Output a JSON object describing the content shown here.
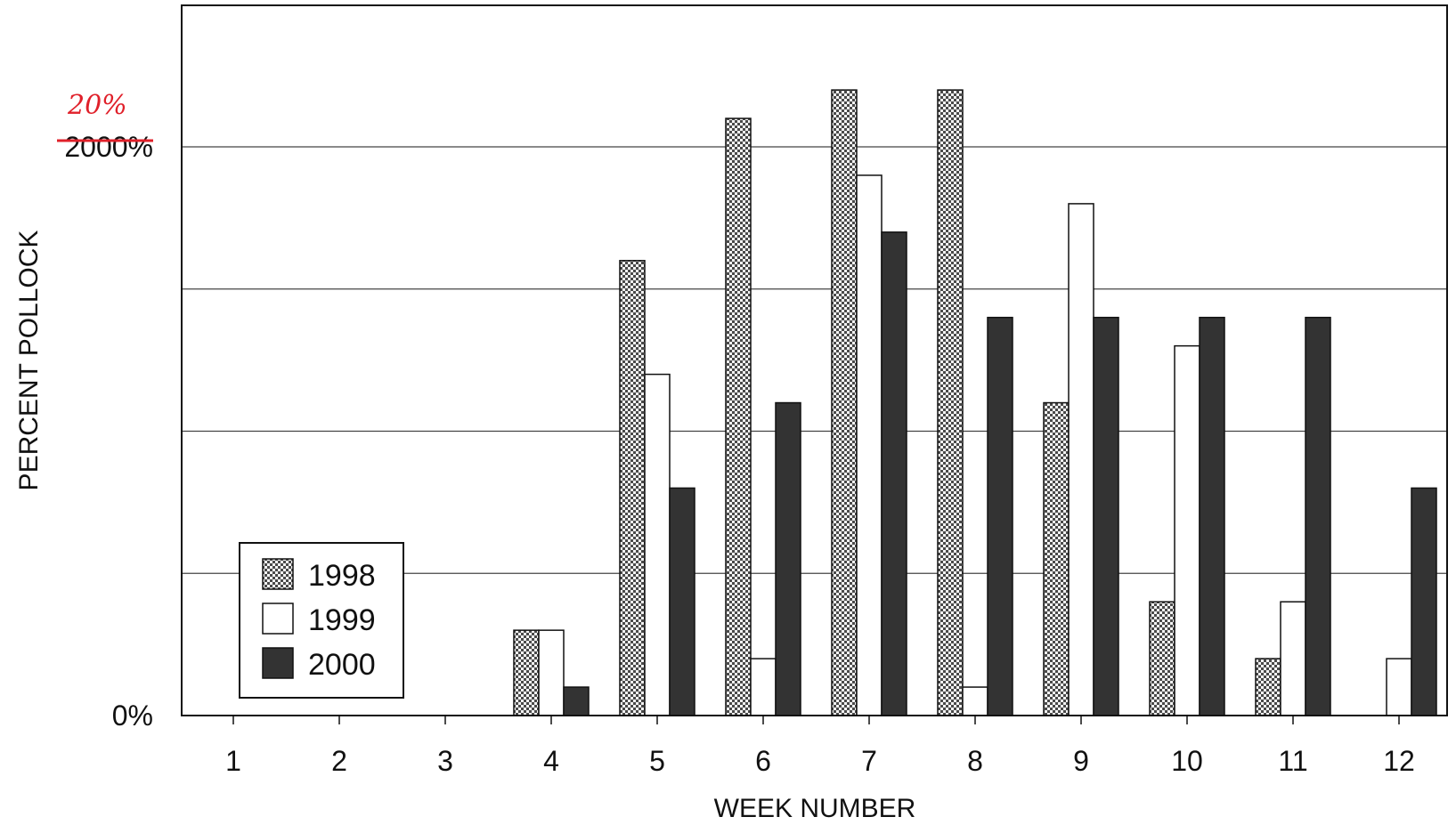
{
  "chart_data": {
    "type": "bar",
    "title": "",
    "xlabel": "WEEK NUMBER",
    "ylabel": "PERCENT POLLOCK",
    "categories": [
      "1",
      "2",
      "3",
      "4",
      "5",
      "6",
      "7",
      "8",
      "9",
      "10",
      "11",
      "12"
    ],
    "series": [
      {
        "name": "1998",
        "color": "#c8c8c8",
        "pattern": "checker",
        "values": [
          0,
          0,
          0,
          3,
          16,
          21,
          22,
          22,
          11,
          4,
          2,
          0
        ]
      },
      {
        "name": "1999",
        "color": "#ffffff",
        "pattern": "none",
        "values": [
          0,
          0,
          0,
          3,
          12,
          2,
          19,
          1,
          18,
          13,
          4,
          2
        ]
      },
      {
        "name": "2000",
        "color": "#333333",
        "pattern": "none",
        "values": [
          0,
          0,
          0,
          1,
          8,
          11,
          17,
          14,
          14,
          14,
          14,
          8
        ]
      }
    ],
    "ylim": [
      0,
      25
    ],
    "y_ticks": [
      {
        "value": 0,
        "label": "0%"
      },
      {
        "value": 20,
        "label": "2000%"
      }
    ],
    "gridlines": [
      5,
      10,
      15,
      20
    ],
    "grid": true,
    "legend": {
      "position": "bottom-left",
      "entries": [
        "1998",
        "1999",
        "2000"
      ]
    },
    "annotations": [
      {
        "text": "20%",
        "style": "handwritten-red",
        "note": "correction above struck-through tick label"
      }
    ]
  }
}
